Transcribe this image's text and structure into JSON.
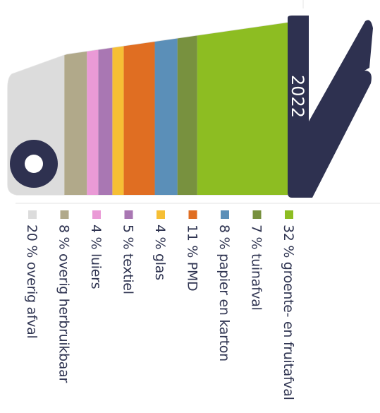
{
  "chart_data": {
    "type": "bar",
    "stacked": true,
    "unit": "%",
    "year": "2022",
    "legend_placement": "bottom",
    "colors": {
      "truck": "#2e3150",
      "body_outline": "#e6e6e6"
    },
    "categories": [
      "groente- en fruitafval",
      "tuinafval",
      "papier en karton",
      "PMD",
      "glas",
      "textiel",
      "luiers",
      "overig herbruikbaar",
      "overig afval"
    ],
    "values": [
      32,
      7,
      8,
      11,
      4,
      5,
      4,
      8,
      20
    ],
    "series_colors": [
      "#8dbd22",
      "#78913f",
      "#5b8fb8",
      "#e06e22",
      "#f6bf35",
      "#a977b3",
      "#ea9ad6",
      "#b1a98a",
      "#dcdcdc"
    ],
    "labels": [
      "32 % groente- en fruitafval",
      "7 % tuinafval",
      "8 % papier en karton",
      "11 % PMD",
      "4 % glas",
      "5 % textiel",
      "4 % luiers",
      "8 % overig herbruikbaar",
      "20 % overig afval"
    ]
  }
}
